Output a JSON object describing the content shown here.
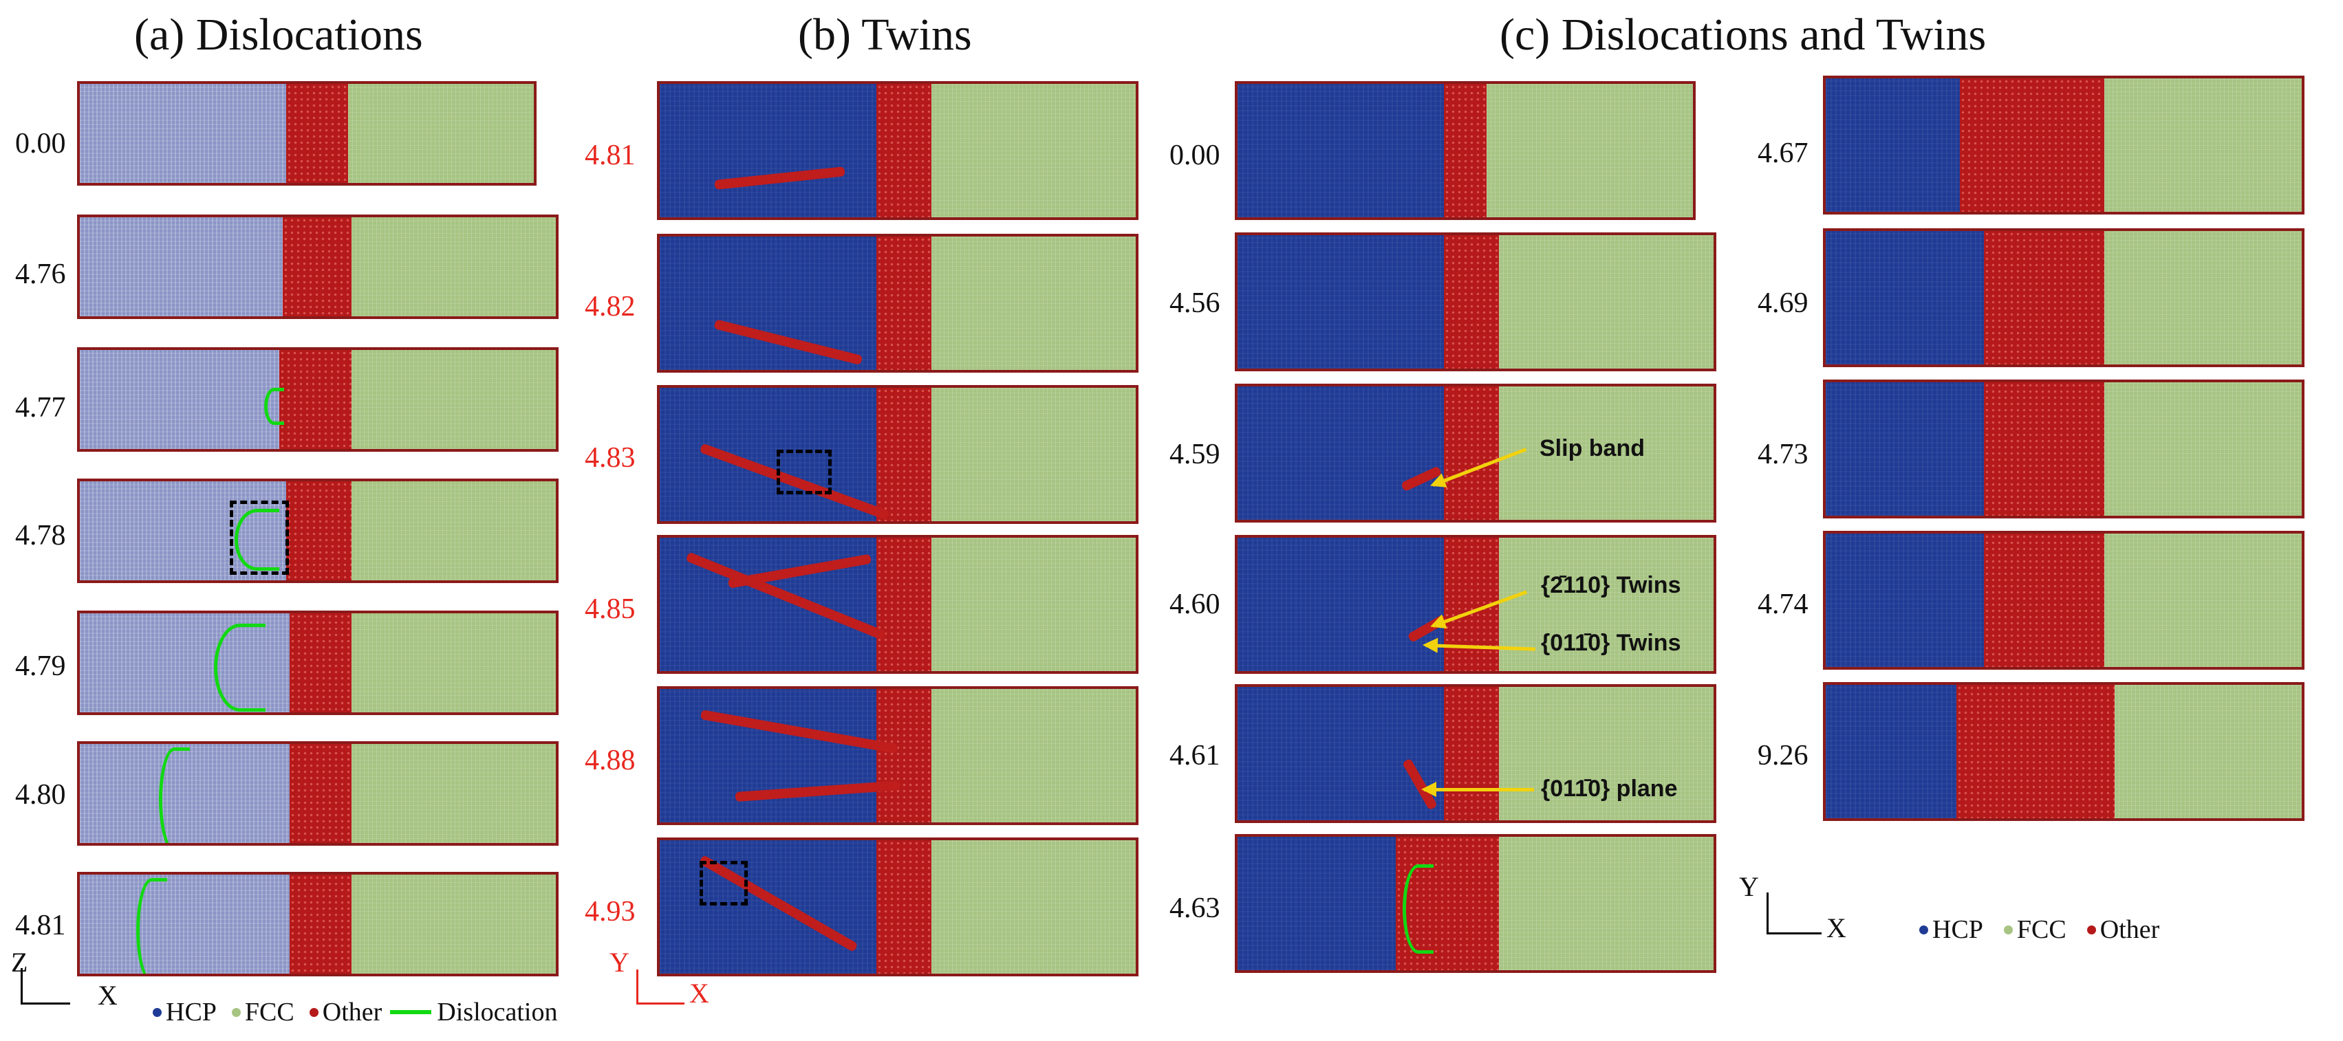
{
  "titles": {
    "a": "(a) Dislocations",
    "b": "(b) Twins",
    "c": "(c) Dislocations and Twins"
  },
  "col_a_labels": [
    "0.00",
    "4.76",
    "4.77",
    "4.78",
    "4.79",
    "4.80",
    "4.81"
  ],
  "col_b_labels": [
    "4.81",
    "4.82",
    "4.83",
    "4.85",
    "4.88",
    "4.93"
  ],
  "col_c1_labels": [
    "0.00",
    "4.56",
    "4.59",
    "4.60",
    "4.61",
    "4.63"
  ],
  "col_c2_labels": [
    "4.67",
    "4.69",
    "4.73",
    "4.74",
    "9.26"
  ],
  "annotations": {
    "slip_band": "Slip band",
    "twins_2110": "{2̄110} Twins",
    "twins_0110": "{011̄0} Twins",
    "plane_0110": "{011̄0} plane"
  },
  "axes": {
    "a": {
      "vertical": "Z",
      "horizontal": "X"
    },
    "b": {
      "vertical": "Y",
      "horizontal": "X"
    },
    "c": {
      "vertical": "Y",
      "horizontal": "X"
    }
  },
  "legend_a": {
    "hcp": "HCP",
    "fcc": "FCC",
    "other": "Other",
    "dislocation": "Dislocation"
  },
  "legend_c": {
    "hcp": "HCP",
    "fcc": "FCC",
    "other": "Other"
  },
  "colors": {
    "hcp": "#1f3b95",
    "fcc": "#a7c483",
    "other": "#b5191a",
    "dislocation": "#12d912",
    "arrow": "#f2d20c",
    "label_red": "#e8271f"
  }
}
